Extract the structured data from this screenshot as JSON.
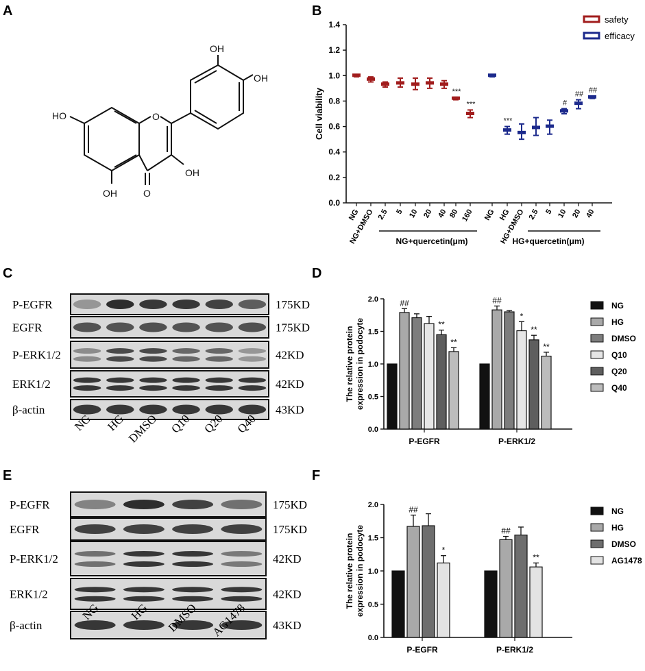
{
  "panels": {
    "A": {
      "letter": "A",
      "labels": {
        "oh_top": "OH",
        "oh_right": "OH",
        "oh_left": "HO",
        "oh_3": "OH",
        "oh_5": "OH",
        "carbonyl_o": "O",
        "ring_o": "O"
      }
    },
    "B": {
      "letter": "B"
    },
    "C": {
      "letter": "C",
      "rows": [
        {
          "label": "P-EGFR",
          "size": "175KD"
        },
        {
          "label": "EGFR",
          "size": "175KD"
        },
        {
          "label": "P-ERK1/2",
          "size": "42KD"
        },
        {
          "label": "ERK1/2",
          "size": "42KD"
        },
        {
          "label": "β-actin",
          "size": "43KD"
        }
      ],
      "lanes": [
        "NG",
        "HG",
        "DMSO",
        "Q10",
        "Q20",
        "Q40"
      ]
    },
    "D": {
      "letter": "D"
    },
    "E": {
      "letter": "E",
      "rows": [
        {
          "label": "P-EGFR",
          "size": "175KD"
        },
        {
          "label": "EGFR",
          "size": "175KD"
        },
        {
          "label": "P-ERK1/2",
          "size": "42KD"
        },
        {
          "label": "ERK1/2",
          "size": "42KD"
        },
        {
          "label": "β-actin",
          "size": "43KD"
        }
      ],
      "lanes": [
        "NG",
        "HG",
        "DMSO",
        "AG1478"
      ]
    },
    "F": {
      "letter": "F"
    }
  },
  "chart_data": [
    {
      "id": "B",
      "type": "box",
      "title": "",
      "xlabel": "",
      "ylabel": "Cell viability",
      "ylim": [
        0.0,
        1.4
      ],
      "yticks": [
        "0.0",
        "0.2",
        "0.4",
        "0.6",
        "0.8",
        "1.0",
        "1.2",
        "1.4"
      ],
      "categories": [
        "NG",
        "NG+DMSO",
        "2.5",
        "5",
        "10",
        "20",
        "40",
        "80",
        "160",
        "NG",
        "HG",
        "HG+DMSO",
        "2.5",
        "5",
        "10",
        "20",
        "40"
      ],
      "group_labels": [
        "NG+quercetin(μm)",
        "HG+quercetin(μm)"
      ],
      "legend": {
        "position": "top-right",
        "entries": [
          {
            "name": "safety",
            "color": "#a11d1d"
          },
          {
            "name": "efficacy",
            "color": "#1c2a8c"
          }
        ]
      },
      "series": [
        {
          "name": "safety",
          "color": "#a11d1d",
          "values": [
            1.0,
            0.97,
            0.93,
            0.94,
            0.93,
            0.94,
            0.93,
            0.82,
            0.7
          ],
          "low": [
            0.99,
            0.95,
            0.91,
            0.91,
            0.89,
            0.9,
            0.9,
            0.81,
            0.67
          ],
          "high": [
            1.0,
            0.99,
            0.95,
            0.98,
            0.98,
            0.98,
            0.96,
            0.83,
            0.73
          ],
          "annotations": [
            "",
            "",
            "",
            "",
            "",
            "",
            "",
            "***",
            "***"
          ]
        },
        {
          "name": "efficacy",
          "color": "#1c2a8c",
          "values": [
            1.0,
            0.57,
            0.55,
            0.59,
            0.6,
            0.72,
            0.78,
            0.83
          ],
          "low": [
            0.99,
            0.54,
            0.5,
            0.53,
            0.54,
            0.7,
            0.74,
            0.82
          ],
          "high": [
            1.0,
            0.6,
            0.62,
            0.67,
            0.65,
            0.74,
            0.81,
            0.84
          ],
          "annotations": [
            "",
            "***",
            "",
            "",
            "",
            "#",
            "##",
            "##"
          ]
        }
      ]
    },
    {
      "id": "D",
      "type": "bar",
      "ylabel": "The relative protein expression in podocyte",
      "ylim": [
        0.0,
        2.0
      ],
      "yticks": [
        "0.0",
        "0.5",
        "1.0",
        "1.5",
        "2.0"
      ],
      "categories": [
        "P-EGFR",
        "P-ERK1/2"
      ],
      "legend": {
        "position": "right"
      },
      "series": [
        {
          "name": "NG",
          "fill": "#111111",
          "values": [
            1.0,
            1.0
          ],
          "err": [
            0,
            0
          ],
          "marks": [
            "",
            ""
          ]
        },
        {
          "name": "HG",
          "fill": "#a9a9a9",
          "values": [
            1.79,
            1.83
          ],
          "err": [
            0.06,
            0.06
          ],
          "marks": [
            "##",
            "##"
          ]
        },
        {
          "name": "DMSO",
          "fill": "#7d7d7d",
          "values": [
            1.71,
            1.8
          ],
          "err": [
            0.06,
            0.02
          ],
          "marks": [
            "",
            ""
          ]
        },
        {
          "name": "Q10",
          "fill": "#e6e6e6",
          "values": [
            1.62,
            1.51
          ],
          "err": [
            0.11,
            0.14
          ],
          "marks": [
            "",
            "*"
          ]
        },
        {
          "name": "Q20",
          "fill": "#5e5e5e",
          "values": [
            1.45,
            1.37
          ],
          "err": [
            0.07,
            0.07
          ],
          "marks": [
            "**",
            "**"
          ]
        },
        {
          "name": "Q40",
          "fill": "#bcbcbc",
          "values": [
            1.19,
            1.12
          ],
          "err": [
            0.06,
            0.06
          ],
          "marks": [
            "**",
            "**"
          ]
        }
      ]
    },
    {
      "id": "F",
      "type": "bar",
      "ylabel": "The relative protein expression in podocyte",
      "ylim": [
        0.0,
        2.0
      ],
      "yticks": [
        "0.0",
        "0.5",
        "1.0",
        "1.5",
        "2.0"
      ],
      "categories": [
        "P-EGFR",
        "P-ERK1/2"
      ],
      "legend": {
        "position": "right"
      },
      "series": [
        {
          "name": "NG",
          "fill": "#111111",
          "values": [
            1.0,
            1.0
          ],
          "err": [
            0,
            0
          ],
          "marks": [
            "",
            ""
          ]
        },
        {
          "name": "HG",
          "fill": "#a9a9a9",
          "values": [
            1.67,
            1.47
          ],
          "err": [
            0.17,
            0.05
          ],
          "marks": [
            "##",
            "##"
          ]
        },
        {
          "name": "DMSO",
          "fill": "#6e6e6e",
          "values": [
            1.68,
            1.54
          ],
          "err": [
            0.18,
            0.12
          ],
          "marks": [
            "",
            ""
          ]
        },
        {
          "name": "AG1478",
          "fill": "#e3e3e3",
          "values": [
            1.12,
            1.06
          ],
          "err": [
            0.11,
            0.06
          ],
          "marks": [
            "*",
            "**"
          ]
        }
      ]
    }
  ]
}
